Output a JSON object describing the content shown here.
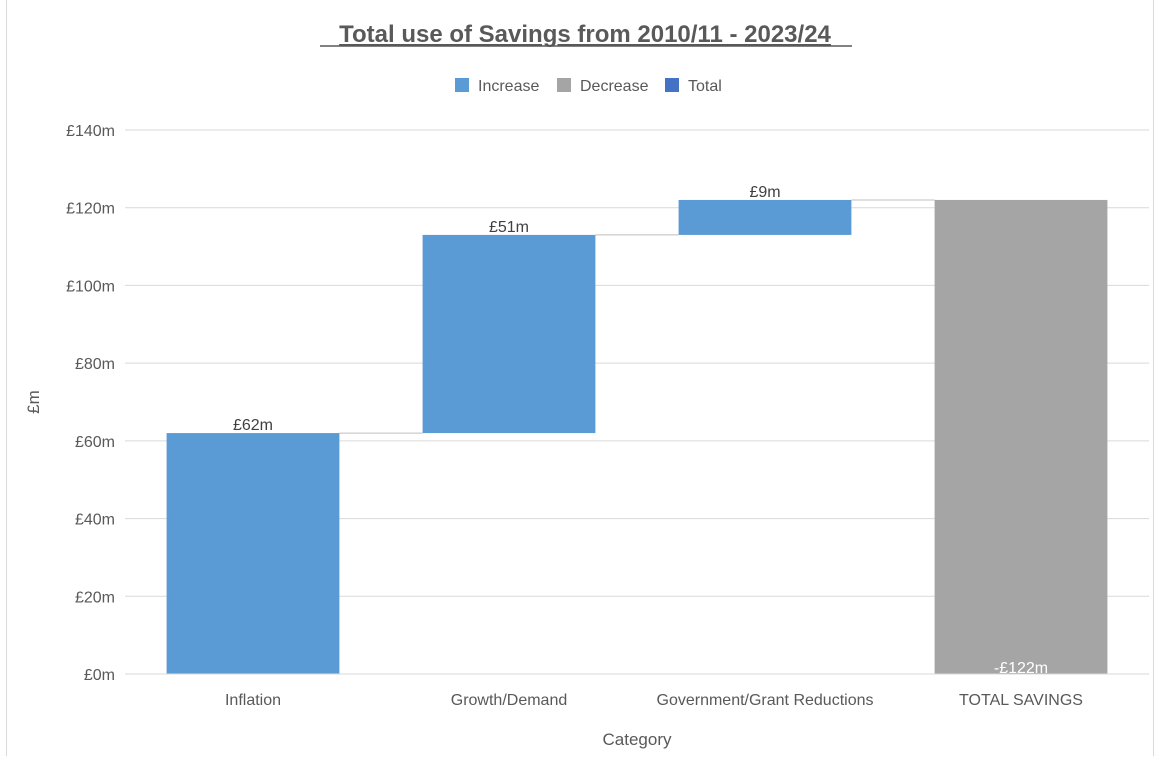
{
  "chart_data": {
    "type": "waterfall",
    "title": "Total use of Savings from 2010/11 - 2023/24",
    "xlabel": "Category",
    "ylabel": "£m",
    "ylim": [
      0,
      140
    ],
    "ytick_values": [
      0,
      20,
      40,
      60,
      80,
      100,
      120,
      140
    ],
    "ytick_labels": [
      "£0m",
      "£20m",
      "£40m",
      "£60m",
      "£80m",
      "£100m",
      "£120m",
      "£140m"
    ],
    "grid": true,
    "legend_position": "top",
    "legend": [
      {
        "label": "Increase",
        "color": "#5b9bd5"
      },
      {
        "label": "Decrease",
        "color": "#a5a5a5"
      },
      {
        "label": "Total",
        "color": "#4472c4"
      }
    ],
    "categories": [
      "Inflation",
      "Growth/Demand",
      "Government/Grant Reductions",
      "TOTAL SAVINGS"
    ],
    "values": [
      62,
      51,
      9,
      -122
    ],
    "bar_kind": [
      "increase",
      "increase",
      "increase",
      "decrease"
    ],
    "data_labels": [
      "£62m",
      "£51m",
      "£9m",
      "-£122m"
    ],
    "colors": {
      "increase": "#5b9bd5",
      "decrease": "#a5a5a5",
      "total": "#4472c4",
      "gridline": "#d9d9d9",
      "text": "#595959"
    }
  }
}
